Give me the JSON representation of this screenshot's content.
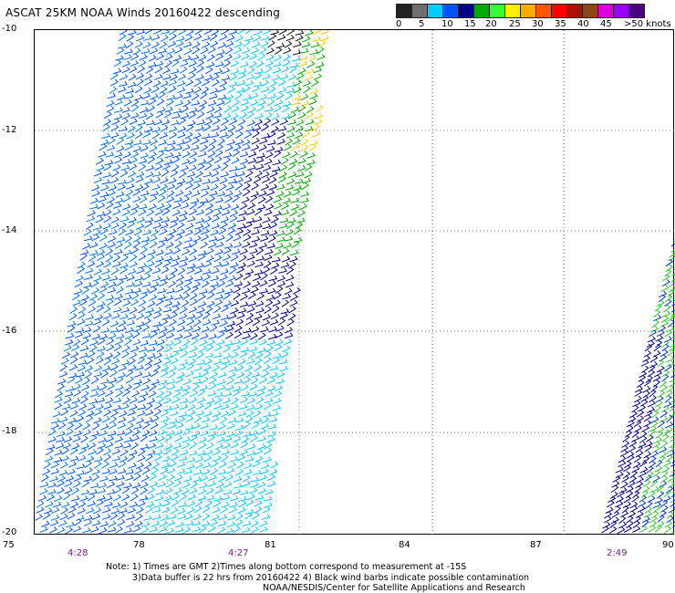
{
  "title": "ASCAT 25KM NOAA Winds 20160422 descending",
  "legend": {
    "colors": [
      "#222222",
      "#6f6f6f",
      "#00ccff",
      "#0055ff",
      "#00008b",
      "#00aa00",
      "#33ff33",
      "#ffee00",
      "#ffaa00",
      "#ff5500",
      "#ff0000",
      "#aa1100",
      "#8b4513",
      "#dd00dd",
      "#9900ff",
      "#4b0082"
    ],
    "labels": [
      "0",
      "5",
      "10",
      "15",
      "20",
      "25",
      "30",
      "35",
      "40",
      "45",
      ">50 knots"
    ]
  },
  "axes": {
    "y_labels": [
      "-10",
      "-12",
      "-14",
      "-16",
      "-18",
      "-20"
    ],
    "x_labels": [
      "75",
      "78",
      "81",
      "84",
      "87",
      "90"
    ]
  },
  "times": [
    "4:28",
    "4:27",
    "2:49"
  ],
  "notes": [
    "Note: 1) Times are GMT 2)Times along bottom correspond to measurement at -15S",
    "3)Data buffer is 22 hrs from 20160422 4) Black wind barbs indicate possible contamination",
    "NOAA/NESDIS/Center for Satellite Applications and Research"
  ]
}
